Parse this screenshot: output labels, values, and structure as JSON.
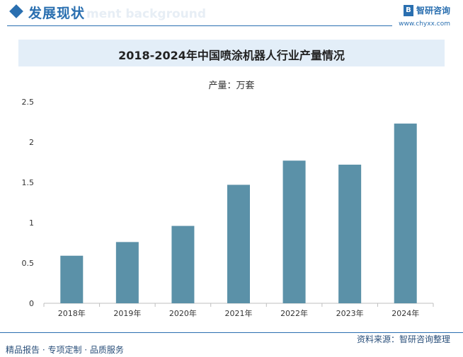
{
  "header": {
    "section_title": "发展现状",
    "ghost_text": "ment background",
    "brand_name": "智研咨询",
    "brand_url": "www.chyxx.com"
  },
  "chart_data": {
    "type": "bar",
    "title": "2018-2024年中国喷涂机器人行业产量情况",
    "unit": "产量：万套",
    "categories": [
      "2018年",
      "2019年",
      "2020年",
      "2021年",
      "2022年",
      "2023年",
      "2024年"
    ],
    "values": [
      0.59,
      0.76,
      0.96,
      1.47,
      1.77,
      1.72,
      2.23
    ],
    "ylim": [
      0,
      2.5
    ],
    "yticks": [
      "0",
      "0.5",
      "1",
      "1.5",
      "2",
      "2.5"
    ],
    "grid": false,
    "bar_color": "#5b91a8"
  },
  "footer": {
    "source": "资料来源：智研咨询整理",
    "tagline": "精品报告 · 专项定制 · 品质服务"
  }
}
